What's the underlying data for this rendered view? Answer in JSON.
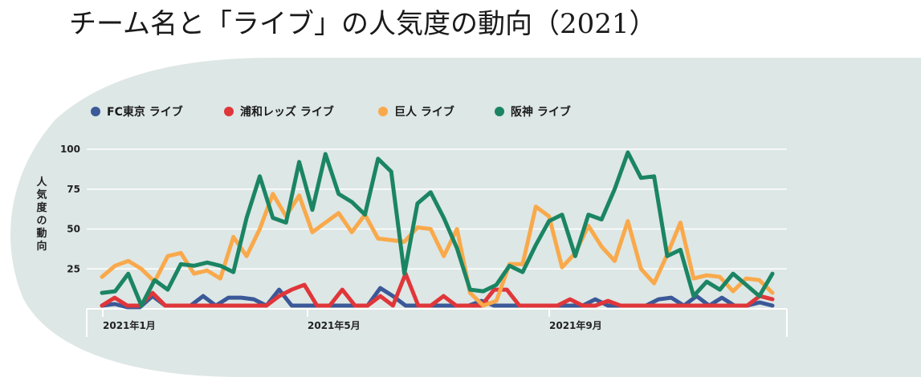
{
  "chart_data": {
    "type": "line",
    "title": "チーム名と「ライブ」の人気度の動向（2021）",
    "ylabel": "人気度の動向",
    "xlabel": "",
    "ylim": [
      0,
      100
    ],
    "yticks": [
      25,
      50,
      75,
      100
    ],
    "x_tick_labels": [
      "2021年1月",
      "2021年5月",
      "2021年9月"
    ],
    "grid": true,
    "legend_position": "top-left",
    "series": [
      {
        "name": "FC東京 ライブ",
        "color": "#3b5998",
        "values": [
          2,
          3,
          1,
          1,
          8,
          2,
          2,
          2,
          8,
          2,
          7,
          7,
          6,
          2,
          12,
          2,
          2,
          2,
          2,
          2,
          2,
          2,
          13,
          8,
          2,
          2,
          2,
          2,
          2,
          2,
          5,
          2,
          2,
          2,
          2,
          2,
          2,
          2,
          2,
          6,
          2,
          2,
          2,
          2,
          6,
          7,
          2,
          8,
          2,
          7,
          2,
          2,
          4,
          2
        ]
      },
      {
        "name": "浦和レッズ ライブ",
        "color": "#e0363a",
        "values": [
          2,
          7,
          2,
          2,
          10,
          2,
          2,
          2,
          2,
          2,
          2,
          2,
          2,
          2,
          8,
          12,
          15,
          2,
          2,
          12,
          2,
          2,
          8,
          2,
          22,
          2,
          2,
          8,
          2,
          2,
          2,
          12,
          12,
          2,
          2,
          2,
          2,
          6,
          2,
          2,
          5,
          2,
          2,
          2,
          2,
          2,
          2,
          2,
          2,
          2,
          2,
          2,
          8,
          6
        ]
      },
      {
        "name": "巨人 ライブ",
        "color": "#f9a94b",
        "values": [
          20,
          27,
          30,
          25,
          17,
          33,
          35,
          22,
          24,
          19,
          45,
          33,
          50,
          72,
          58,
          71,
          48,
          54,
          60,
          48,
          59,
          44,
          43,
          42,
          51,
          50,
          33,
          50,
          10,
          2,
          5,
          28,
          28,
          64,
          58,
          26,
          35,
          52,
          39,
          30,
          55,
          25,
          16,
          34,
          54,
          19,
          21,
          20,
          11,
          19,
          18,
          10
        ]
      },
      {
        "name": "阪神 ライブ",
        "color": "#1b8563",
        "values": [
          10,
          11,
          22,
          2,
          18,
          12,
          28,
          27,
          29,
          27,
          23,
          57,
          83,
          57,
          54,
          92,
          62,
          97,
          72,
          67,
          59,
          94,
          86,
          22,
          66,
          73,
          57,
          38,
          12,
          11,
          15,
          27,
          23,
          40,
          55,
          59,
          33,
          59,
          56,
          75,
          98,
          82,
          83,
          33,
          37,
          8,
          17,
          12,
          22,
          15,
          8,
          22
        ]
      }
    ]
  }
}
